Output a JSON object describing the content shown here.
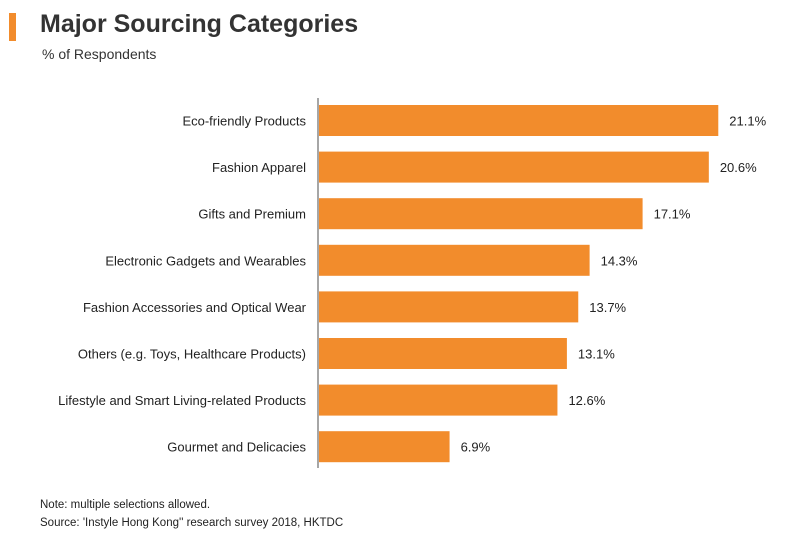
{
  "header": {
    "title": "Major Sourcing Categories",
    "subtitle": "% of Respondents"
  },
  "footer": {
    "note": "Note: multiple selections allowed.",
    "source": "Source: 'Instyle Hong Kong'' research survey 2018, HKTDC"
  },
  "colors": {
    "accent": "#f28c2c",
    "bar": "#f28c2c",
    "axis": "#888888"
  },
  "chart_data": {
    "type": "bar",
    "orientation": "horizontal",
    "title": "Major Sourcing Categories",
    "ylabel": "",
    "xlabel": "",
    "unit": "% of Respondents",
    "categories": [
      "Eco-friendly Products",
      "Fashion Apparel",
      "Gifts and Premium",
      "Electronic Gadgets and Wearables",
      "Fashion Accessories and Optical Wear",
      "Others (e.g. Toys, Healthcare Products)",
      "Lifestyle and Smart Living-related Products",
      "Gourmet and Delicacies"
    ],
    "values": [
      21.1,
      20.6,
      17.1,
      14.3,
      13.7,
      13.1,
      12.6,
      6.9
    ],
    "value_labels": [
      "21.1%",
      "20.6%",
      "17.1%",
      "14.3%",
      "13.7%",
      "13.1%",
      "12.6%",
      "6.9%"
    ],
    "xlim": [
      0,
      22.3
    ],
    "grid": false,
    "legend": "none"
  }
}
